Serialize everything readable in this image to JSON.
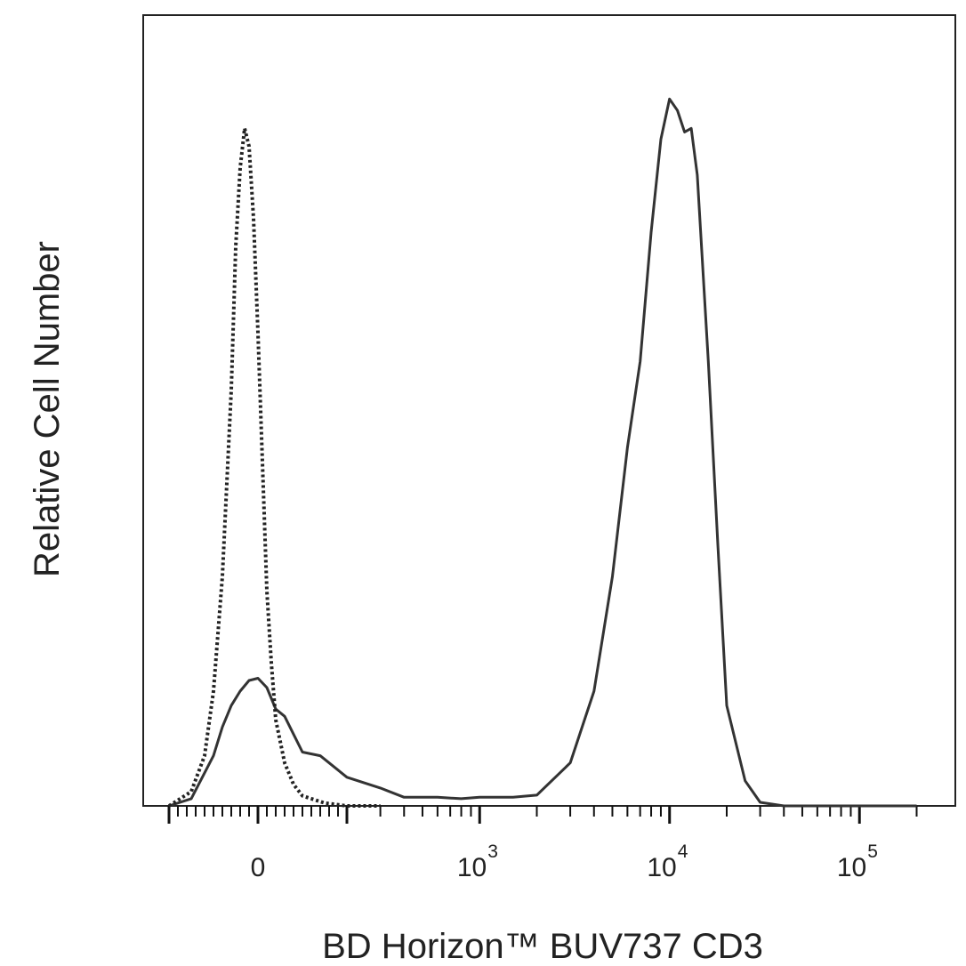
{
  "chart_data": {
    "type": "histogram",
    "title": "",
    "xlabel": "BD Horizon™ BUV737 CD3",
    "ylabel": "Relative Cell Number",
    "x_scale": "biexponential (linear near 0, log above ~10^2.3)",
    "xlim": [
      -200,
      200000
    ],
    "ylim": [
      0,
      1
    ],
    "grid": false,
    "legend": "none",
    "x_tick_labels": [
      {
        "base": "0",
        "exp": "",
        "value": 0
      },
      {
        "base": "10",
        "exp": "3",
        "value": 1000
      },
      {
        "base": "10",
        "exp": "4",
        "value": 10000
      },
      {
        "base": "10",
        "exp": "5",
        "value": 100000
      }
    ],
    "series": [
      {
        "style": "solid",
        "color": "#333333",
        "x": [
          -200,
          -150,
          -100,
          -80,
          -60,
          -40,
          -20,
          0,
          20,
          40,
          60,
          80,
          100,
          140,
          200,
          300,
          400,
          600,
          800,
          1000,
          1500,
          2000,
          3000,
          4000,
          5000,
          6000,
          7000,
          8000,
          9000,
          10000,
          11000,
          12000,
          13000,
          14000,
          16000,
          18000,
          20000,
          25000,
          30000,
          40000,
          60000,
          100000,
          200000
        ],
        "y": [
          0,
          0.01,
          0.07,
          0.11,
          0.14,
          0.16,
          0.175,
          0.178,
          0.165,
          0.135,
          0.125,
          0.1,
          0.075,
          0.07,
          0.04,
          0.025,
          0.012,
          0.012,
          0.01,
          0.012,
          0.012,
          0.015,
          0.06,
          0.16,
          0.32,
          0.5,
          0.62,
          0.8,
          0.93,
          0.986,
          0.97,
          0.94,
          0.945,
          0.88,
          0.62,
          0.36,
          0.14,
          0.035,
          0.005,
          0,
          0,
          0,
          0
        ]
      },
      {
        "style": "dotted",
        "color": "#222222",
        "x": [
          -200,
          -150,
          -120,
          -100,
          -80,
          -60,
          -50,
          -40,
          -30,
          -20,
          -10,
          0,
          10,
          20,
          30,
          40,
          60,
          80,
          100,
          150,
          200,
          300
        ],
        "y": [
          0,
          0.02,
          0.07,
          0.16,
          0.32,
          0.58,
          0.78,
          0.89,
          0.945,
          0.92,
          0.82,
          0.66,
          0.48,
          0.3,
          0.2,
          0.12,
          0.06,
          0.03,
          0.014,
          0.004,
          0,
          0
        ]
      }
    ]
  }
}
